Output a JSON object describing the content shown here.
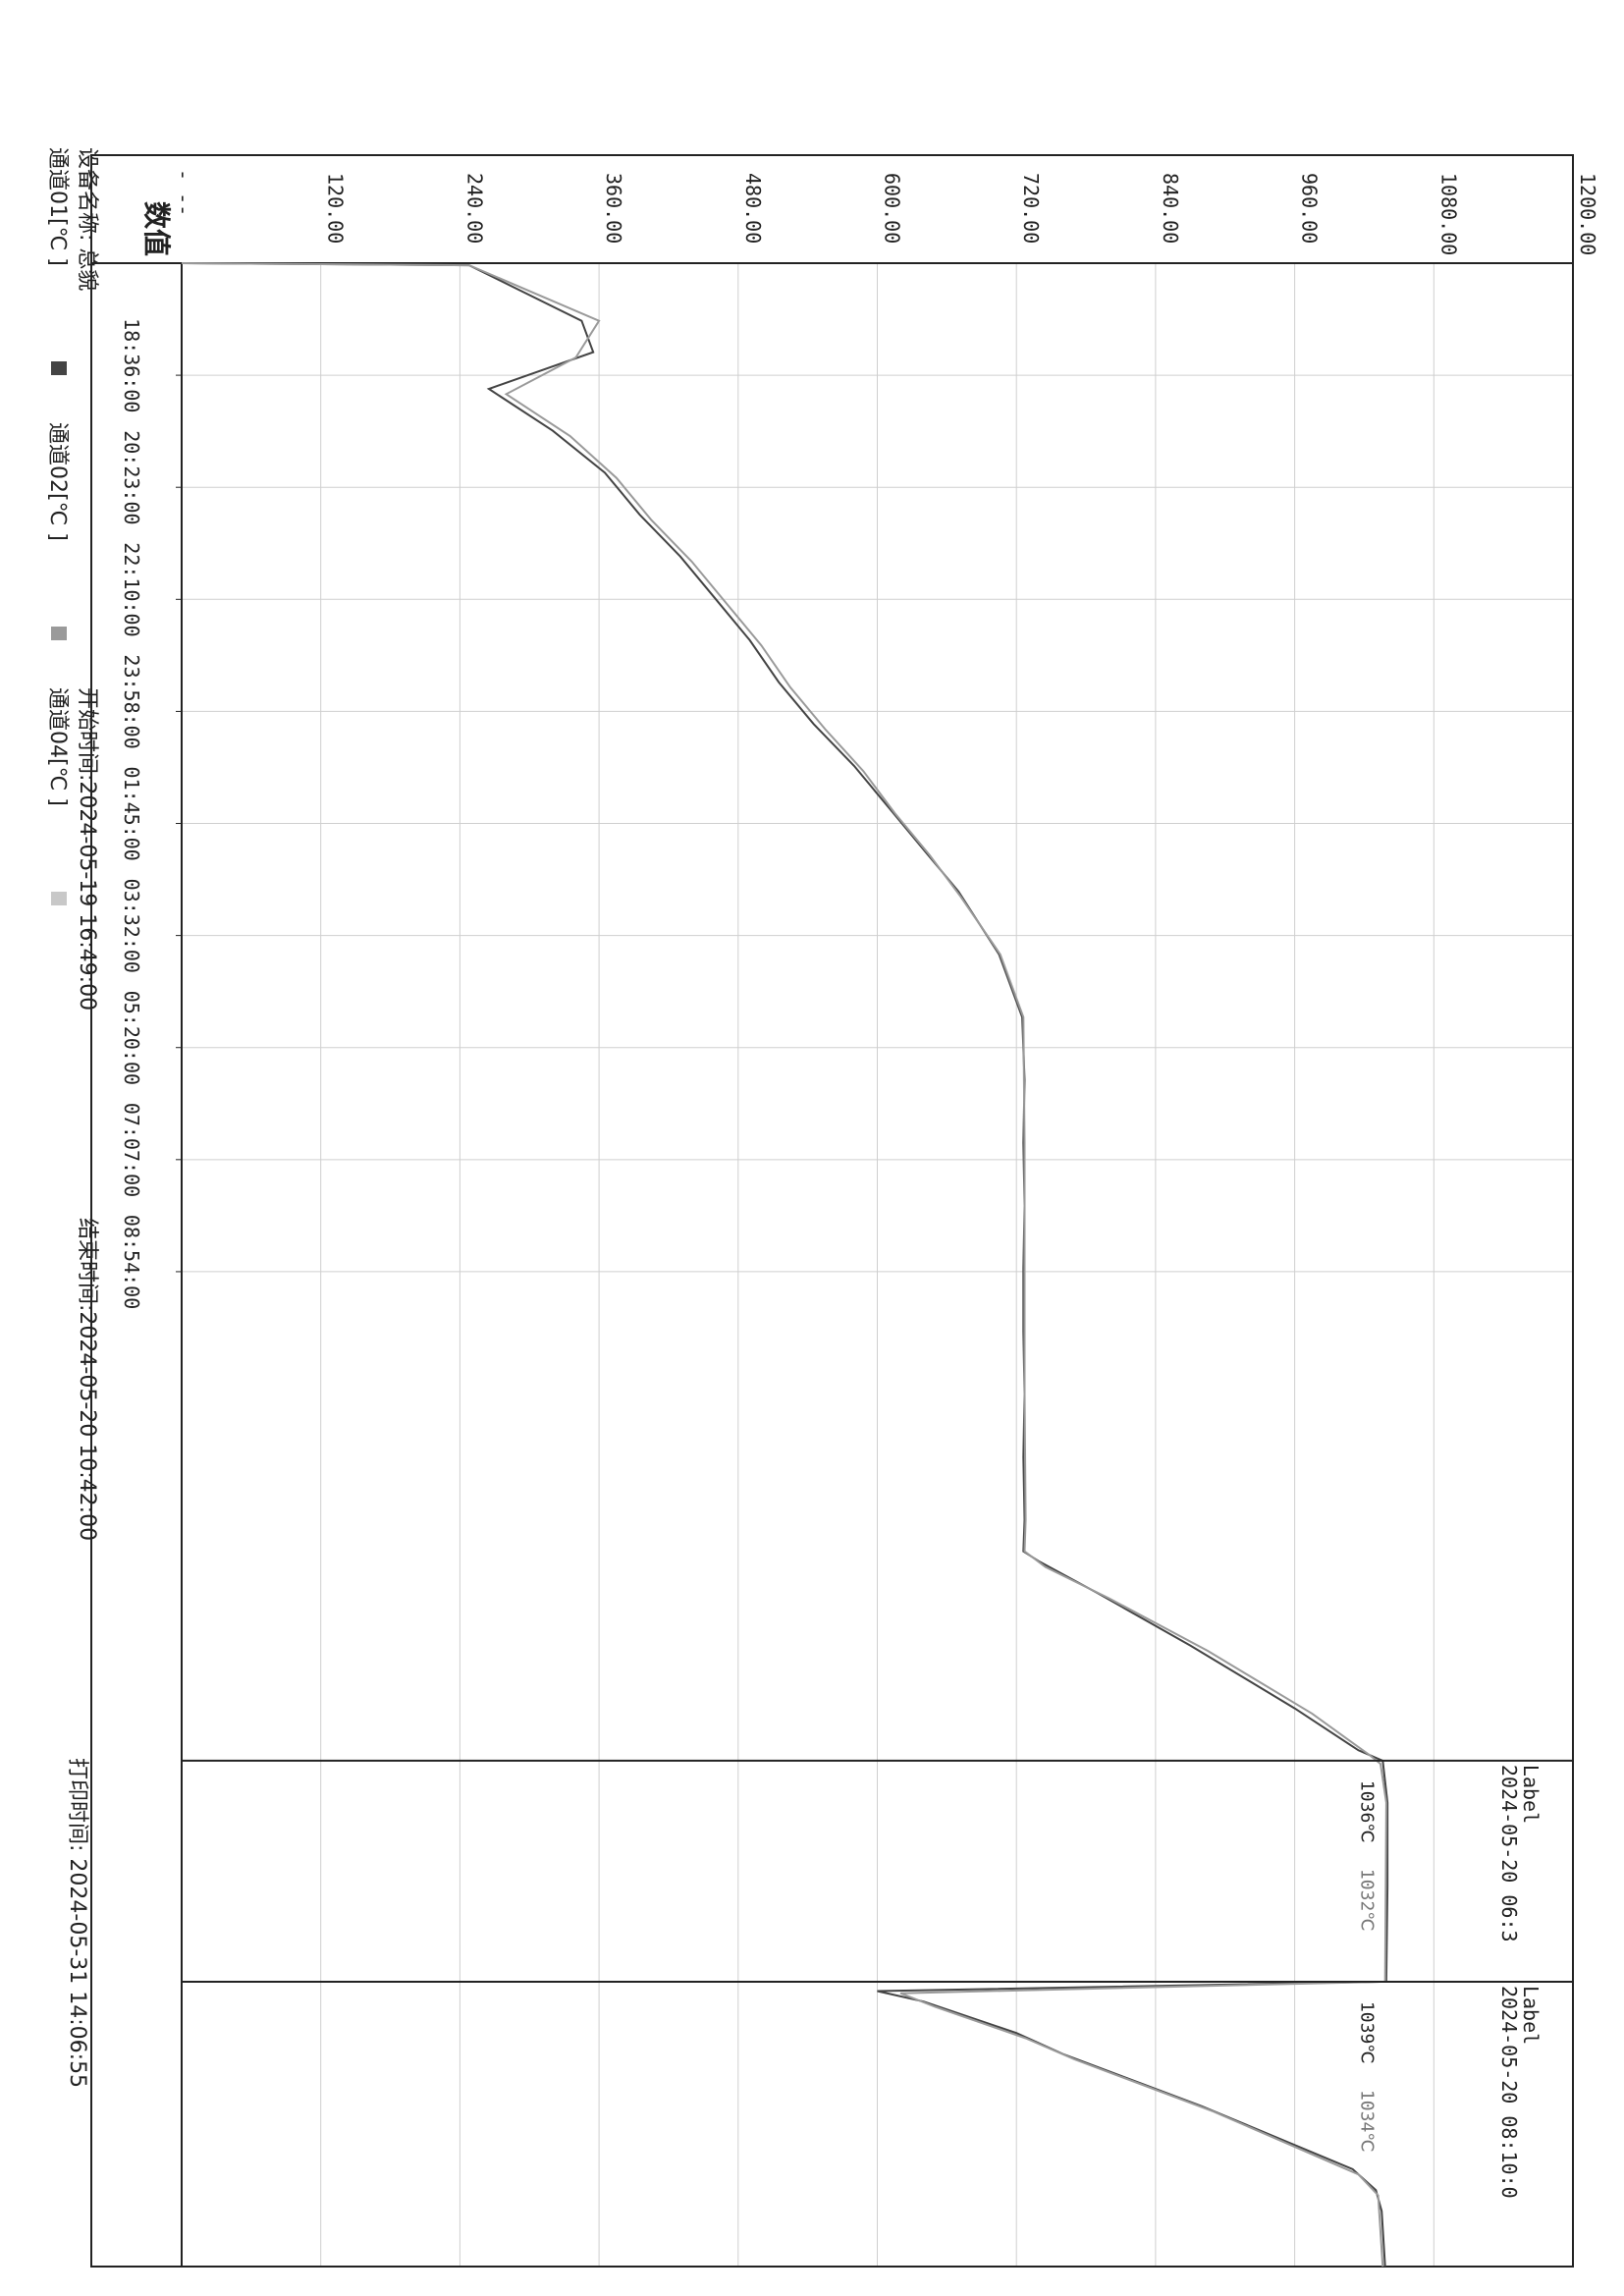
{
  "chart_data": {
    "type": "line",
    "orientation": "rotated-90-clockwise",
    "value_axis": {
      "label": "数值",
      "ticks": [
        120,
        240,
        360,
        480,
        600,
        720,
        840,
        960,
        1080,
        1200
      ],
      "tick_labels": [
        "120.00",
        "240.00",
        "360.00",
        "480.00",
        "600.00",
        "720.00",
        "840.00",
        "960.00",
        "1080.00",
        "1200.00"
      ],
      "top_label": "- --",
      "range": [
        0,
        1200
      ]
    },
    "time_axis": {
      "tick_labels": [
        "18:36:00",
        "20:23:00",
        "22:10:00",
        "23:58:00",
        "01:45:00",
        "03:32:00",
        "05:20:00",
        "07:07:00",
        "08:54:00"
      ],
      "start": "2024-05-19 16:49:00",
      "end": "2024-05-20 10:42:00"
    },
    "grid": true,
    "series": [
      {
        "name": "通道01[℃ ]",
        "color": "#444444",
        "points": [
          [
            0,
            0
          ],
          [
            2,
            248
          ],
          [
            55,
            345
          ],
          [
            85,
            355
          ],
          [
            120,
            265
          ],
          [
            160,
            320
          ],
          [
            200,
            365
          ],
          [
            240,
            395
          ],
          [
            280,
            430
          ],
          [
            320,
            460
          ],
          [
            360,
            490
          ],
          [
            400,
            515
          ],
          [
            440,
            545
          ],
          [
            480,
            580
          ],
          [
            520,
            610
          ],
          [
            560,
            640
          ],
          [
            600,
            670
          ],
          [
            660,
            705
          ],
          [
            720,
            725
          ],
          [
            780,
            727
          ],
          [
            840,
            726
          ],
          [
            900,
            727
          ],
          [
            960,
            726
          ],
          [
            1020,
            726
          ],
          [
            1080,
            727
          ],
          [
            1140,
            726
          ],
          [
            1200,
            727
          ],
          [
            1230,
            726
          ],
          [
            1240,
            740
          ],
          [
            1270,
            790
          ],
          [
            1320,
            870
          ],
          [
            1380,
            960
          ],
          [
            1420,
            1015
          ],
          [
            1430,
            1036
          ],
          [
            1470,
            1040
          ],
          [
            1550,
            1040
          ],
          [
            1640,
            1039
          ],
          [
            1641,
            1039
          ],
          [
            1650,
            600
          ],
          [
            1660,
            640
          ],
          [
            1690,
            720
          ],
          [
            1710,
            760
          ],
          [
            1760,
            880
          ],
          [
            1820,
            1010
          ],
          [
            1840,
            1030
          ],
          [
            1860,
            1035
          ],
          [
            1913,
            1038
          ]
        ]
      },
      {
        "name": "通道02[℃ ]",
        "color": "#9a9a9a",
        "points": [
          [
            0,
            0
          ],
          [
            2,
            248
          ],
          [
            55,
            360
          ],
          [
            90,
            340
          ],
          [
            125,
            280
          ],
          [
            165,
            335
          ],
          [
            205,
            375
          ],
          [
            245,
            405
          ],
          [
            285,
            440
          ],
          [
            325,
            470
          ],
          [
            365,
            500
          ],
          [
            405,
            525
          ],
          [
            445,
            555
          ],
          [
            485,
            588
          ],
          [
            525,
            615
          ],
          [
            565,
            645
          ],
          [
            605,
            672
          ],
          [
            660,
            706
          ],
          [
            720,
            726
          ],
          [
            840,
            727
          ],
          [
            960,
            727
          ],
          [
            1080,
            727
          ],
          [
            1200,
            728
          ],
          [
            1230,
            727
          ],
          [
            1245,
            745
          ],
          [
            1275,
            800
          ],
          [
            1325,
            885
          ],
          [
            1385,
            975
          ],
          [
            1425,
            1025
          ],
          [
            1433,
            1034
          ],
          [
            1470,
            1039
          ],
          [
            1640,
            1038
          ],
          [
            1641,
            1038
          ],
          [
            1652,
            620
          ],
          [
            1665,
            650
          ],
          [
            1695,
            728
          ],
          [
            1715,
            770
          ],
          [
            1765,
            890
          ],
          [
            1825,
            1015
          ],
          [
            1845,
            1032
          ],
          [
            1913,
            1036
          ]
        ]
      },
      {
        "name": "通道04[℃ ]",
        "color": "#c8c8c8",
        "points": []
      }
    ],
    "markers": [
      {
        "label": "Label",
        "text": "2024-05-20 06:3",
        "value": "1036℃",
        "value2": "1032℃"
      },
      {
        "label": "Label",
        "text": "2024-05-20 08:10:0",
        "value": "1039℃",
        "value2": "1034℃"
      }
    ]
  },
  "meta": {
    "device_name": "设备名称: 总貌",
    "start_time": "开始时间:2024-05-19 16:49:00",
    "end_time": "结束时间:2024-05-20 10:42:00",
    "print_time": "打印时间: 2024-05-31 14:06:55",
    "legend": [
      "通道01[℃ ]",
      "通道02[℃ ]",
      "通道04[℃ ]"
    ]
  }
}
